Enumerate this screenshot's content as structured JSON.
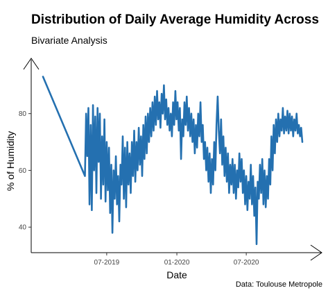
{
  "chart_data": {
    "type": "line",
    "title": "Distribution of Daily Average Humidity Across",
    "subtitle": "Bivariate Analysis",
    "caption": "Data: Toulouse Metropole",
    "xlabel": "Date",
    "ylabel": "% of Humidity",
    "xlim": [
      "2018-12-15",
      "2021-01-15"
    ],
    "ylim": [
      31,
      99
    ],
    "x_ticks": [
      {
        "date": "2019-07-01",
        "label": "07-2019"
      },
      {
        "date": "2020-01-01",
        "label": "01-2020"
      },
      {
        "date": "2020-07-01",
        "label": "07-2020"
      }
    ],
    "y_ticks": [
      40,
      60,
      80
    ],
    "grid": false,
    "series": [
      {
        "color": "#2470b0",
        "points": [
          [
            "2019-01-15",
            93
          ],
          [
            "2019-05-05",
            58
          ],
          [
            "2019-05-08",
            80
          ],
          [
            "2019-05-11",
            65
          ],
          [
            "2019-05-14",
            82
          ],
          [
            "2019-05-17",
            48
          ],
          [
            "2019-05-20",
            76
          ],
          [
            "2019-05-23",
            46
          ],
          [
            "2019-05-26",
            83
          ],
          [
            "2019-05-29",
            60
          ],
          [
            "2019-06-01",
            79
          ],
          [
            "2019-06-04",
            52
          ],
          [
            "2019-06-07",
            82
          ],
          [
            "2019-06-10",
            63
          ],
          [
            "2019-06-13",
            80
          ],
          [
            "2019-06-16",
            50
          ],
          [
            "2019-06-19",
            72
          ],
          [
            "2019-06-22",
            55
          ],
          [
            "2019-06-25",
            78
          ],
          [
            "2019-06-28",
            49
          ],
          [
            "2019-07-01",
            70
          ],
          [
            "2019-07-04",
            53
          ],
          [
            "2019-07-07",
            68
          ],
          [
            "2019-07-10",
            45
          ],
          [
            "2019-07-13",
            62
          ],
          [
            "2019-07-16",
            38
          ],
          [
            "2019-07-19",
            60
          ],
          [
            "2019-07-22",
            50
          ],
          [
            "2019-07-25",
            65
          ],
          [
            "2019-07-28",
            48
          ],
          [
            "2019-07-31",
            58
          ],
          [
            "2019-08-03",
            42
          ],
          [
            "2019-08-06",
            62
          ],
          [
            "2019-08-09",
            55
          ],
          [
            "2019-08-12",
            72
          ],
          [
            "2019-08-15",
            50
          ],
          [
            "2019-08-18",
            68
          ],
          [
            "2019-08-21",
            47
          ],
          [
            "2019-08-24",
            70
          ],
          [
            "2019-08-27",
            55
          ],
          [
            "2019-08-30",
            66
          ],
          [
            "2019-09-02",
            52
          ],
          [
            "2019-09-05",
            70
          ],
          [
            "2019-09-08",
            58
          ],
          [
            "2019-09-11",
            74
          ],
          [
            "2019-09-14",
            56
          ],
          [
            "2019-09-17",
            70
          ],
          [
            "2019-09-20",
            60
          ],
          [
            "2019-09-23",
            75
          ],
          [
            "2019-09-26",
            62
          ],
          [
            "2019-09-29",
            72
          ],
          [
            "2019-10-02",
            58
          ],
          [
            "2019-10-05",
            76
          ],
          [
            "2019-10-08",
            64
          ],
          [
            "2019-10-11",
            79
          ],
          [
            "2019-10-14",
            66
          ],
          [
            "2019-10-17",
            80
          ],
          [
            "2019-10-20",
            70
          ],
          [
            "2019-10-23",
            82
          ],
          [
            "2019-10-26",
            72
          ],
          [
            "2019-10-29",
            84
          ],
          [
            "2019-11-01",
            74
          ],
          [
            "2019-11-04",
            86
          ],
          [
            "2019-11-07",
            76
          ],
          [
            "2019-11-10",
            88
          ],
          [
            "2019-11-13",
            78
          ],
          [
            "2019-11-16",
            84
          ],
          [
            "2019-11-19",
            75
          ],
          [
            "2019-11-22",
            87
          ],
          [
            "2019-11-25",
            80
          ],
          [
            "2019-11-28",
            90
          ],
          [
            "2019-12-01",
            78
          ],
          [
            "2019-12-04",
            85
          ],
          [
            "2019-12-07",
            76
          ],
          [
            "2019-12-10",
            82
          ],
          [
            "2019-12-13",
            74
          ],
          [
            "2019-12-16",
            80
          ],
          [
            "2019-12-19",
            72
          ],
          [
            "2019-12-22",
            84
          ],
          [
            "2019-12-25",
            76
          ],
          [
            "2019-12-28",
            88
          ],
          [
            "2019-12-31",
            78
          ],
          [
            "2020-01-03",
            84
          ],
          [
            "2020-01-06",
            74
          ],
          [
            "2020-01-09",
            82
          ],
          [
            "2020-01-12",
            64
          ],
          [
            "2020-01-15",
            78
          ],
          [
            "2020-01-18",
            72
          ],
          [
            "2020-01-21",
            84
          ],
          [
            "2020-01-24",
            76
          ],
          [
            "2020-01-27",
            86
          ],
          [
            "2020-01-30",
            74
          ],
          [
            "2020-02-02",
            82
          ],
          [
            "2020-02-05",
            72
          ],
          [
            "2020-02-08",
            80
          ],
          [
            "2020-02-11",
            70
          ],
          [
            "2020-02-14",
            78
          ],
          [
            "2020-02-17",
            66
          ],
          [
            "2020-02-20",
            76
          ],
          [
            "2020-02-23",
            68
          ],
          [
            "2020-02-26",
            80
          ],
          [
            "2020-02-29",
            72
          ],
          [
            "2020-03-03",
            84
          ],
          [
            "2020-03-06",
            70
          ],
          [
            "2020-03-09",
            76
          ],
          [
            "2020-03-12",
            64
          ],
          [
            "2020-03-15",
            70
          ],
          [
            "2020-03-18",
            60
          ],
          [
            "2020-03-21",
            68
          ],
          [
            "2020-03-24",
            56
          ],
          [
            "2020-03-27",
            66
          ],
          [
            "2020-03-30",
            52
          ],
          [
            "2020-04-02",
            64
          ],
          [
            "2020-04-05",
            55
          ],
          [
            "2020-04-08",
            70
          ],
          [
            "2020-04-11",
            60
          ],
          [
            "2020-04-14",
            76
          ],
          [
            "2020-04-17",
            86
          ],
          [
            "2020-04-20",
            74
          ],
          [
            "2020-04-23",
            66
          ],
          [
            "2020-04-26",
            78
          ],
          [
            "2020-04-29",
            62
          ],
          [
            "2020-05-02",
            72
          ],
          [
            "2020-05-05",
            58
          ],
          [
            "2020-05-08",
            68
          ],
          [
            "2020-05-11",
            56
          ],
          [
            "2020-05-14",
            66
          ],
          [
            "2020-05-17",
            52
          ],
          [
            "2020-05-20",
            62
          ],
          [
            "2020-05-23",
            55
          ],
          [
            "2020-05-26",
            64
          ],
          [
            "2020-05-29",
            52
          ],
          [
            "2020-06-01",
            62
          ],
          [
            "2020-06-04",
            50
          ],
          [
            "2020-06-07",
            60
          ],
          [
            "2020-06-10",
            54
          ],
          [
            "2020-06-13",
            66
          ],
          [
            "2020-06-16",
            56
          ],
          [
            "2020-06-19",
            64
          ],
          [
            "2020-06-22",
            52
          ],
          [
            "2020-06-25",
            60
          ],
          [
            "2020-06-28",
            48
          ],
          [
            "2020-07-01",
            58
          ],
          [
            "2020-07-04",
            46
          ],
          [
            "2020-07-07",
            56
          ],
          [
            "2020-07-10",
            50
          ],
          [
            "2020-07-13",
            62
          ],
          [
            "2020-07-16",
            48
          ],
          [
            "2020-07-19",
            58
          ],
          [
            "2020-07-22",
            44
          ],
          [
            "2020-07-25",
            54
          ],
          [
            "2020-07-28",
            34
          ],
          [
            "2020-07-31",
            56
          ],
          [
            "2020-08-03",
            50
          ],
          [
            "2020-08-06",
            62
          ],
          [
            "2020-08-09",
            52
          ],
          [
            "2020-08-12",
            64
          ],
          [
            "2020-08-15",
            48
          ],
          [
            "2020-08-18",
            60
          ],
          [
            "2020-08-21",
            47
          ],
          [
            "2020-08-24",
            58
          ],
          [
            "2020-08-27",
            50
          ],
          [
            "2020-08-30",
            64
          ],
          [
            "2020-09-02",
            55
          ],
          [
            "2020-09-05",
            72
          ],
          [
            "2020-09-08",
            60
          ],
          [
            "2020-09-11",
            76
          ],
          [
            "2020-09-14",
            66
          ],
          [
            "2020-09-17",
            78
          ],
          [
            "2020-09-20",
            70
          ],
          [
            "2020-09-23",
            80
          ],
          [
            "2020-09-26",
            72
          ],
          [
            "2020-09-29",
            78
          ],
          [
            "2020-10-02",
            74
          ],
          [
            "2020-10-05",
            82
          ],
          [
            "2020-10-08",
            73
          ],
          [
            "2020-10-11",
            79
          ],
          [
            "2020-10-14",
            74
          ],
          [
            "2020-10-17",
            81
          ],
          [
            "2020-10-20",
            73
          ],
          [
            "2020-10-23",
            80
          ],
          [
            "2020-10-26",
            74
          ],
          [
            "2020-10-29",
            79
          ],
          [
            "2020-11-01",
            72
          ],
          [
            "2020-11-04",
            78
          ],
          [
            "2020-11-07",
            74
          ],
          [
            "2020-11-10",
            80
          ],
          [
            "2020-11-13",
            73
          ],
          [
            "2020-11-16",
            76
          ],
          [
            "2020-11-19",
            72
          ],
          [
            "2020-11-22",
            75
          ],
          [
            "2020-11-25",
            70
          ]
        ]
      }
    ]
  }
}
